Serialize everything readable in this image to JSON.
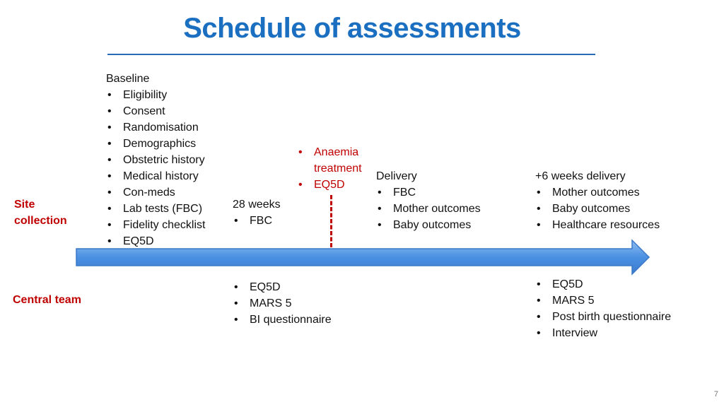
{
  "title": "Schedule of assessments",
  "rows": {
    "site": "Site\ncollection",
    "central": "Central team"
  },
  "baseline": {
    "head": "Baseline",
    "items": [
      "Eligibility",
      "Consent",
      "Randomisation",
      "Demographics",
      "Obstetric history",
      "Medical history",
      "Con-meds",
      "Lab tests (FBC)",
      "Fidelity checklist",
      "EQ5D"
    ]
  },
  "week28": {
    "head": "28 weeks",
    "items": [
      "FBC"
    ]
  },
  "anaemia": {
    "items": [
      "Anaemia treatment",
      "EQ5D"
    ]
  },
  "delivery": {
    "head": "Delivery",
    "items": [
      "FBC",
      "Mother outcomes",
      "Baby outcomes"
    ]
  },
  "post6": {
    "head": "+6 weeks delivery",
    "items": [
      "Mother outcomes",
      "Baby outcomes",
      "Healthcare resources"
    ]
  },
  "central_28": {
    "items": [
      "EQ5D",
      "MARS 5",
      "BI questionnaire"
    ]
  },
  "central_post": {
    "items": [
      "EQ5D",
      "MARS 5",
      "Post birth questionnaire",
      "Interview"
    ]
  },
  "bullet": "•",
  "page_number": "7",
  "colors": {
    "title": "#1b6fc0",
    "accent_red": "#c00000",
    "arrow": "#4a90e2"
  }
}
